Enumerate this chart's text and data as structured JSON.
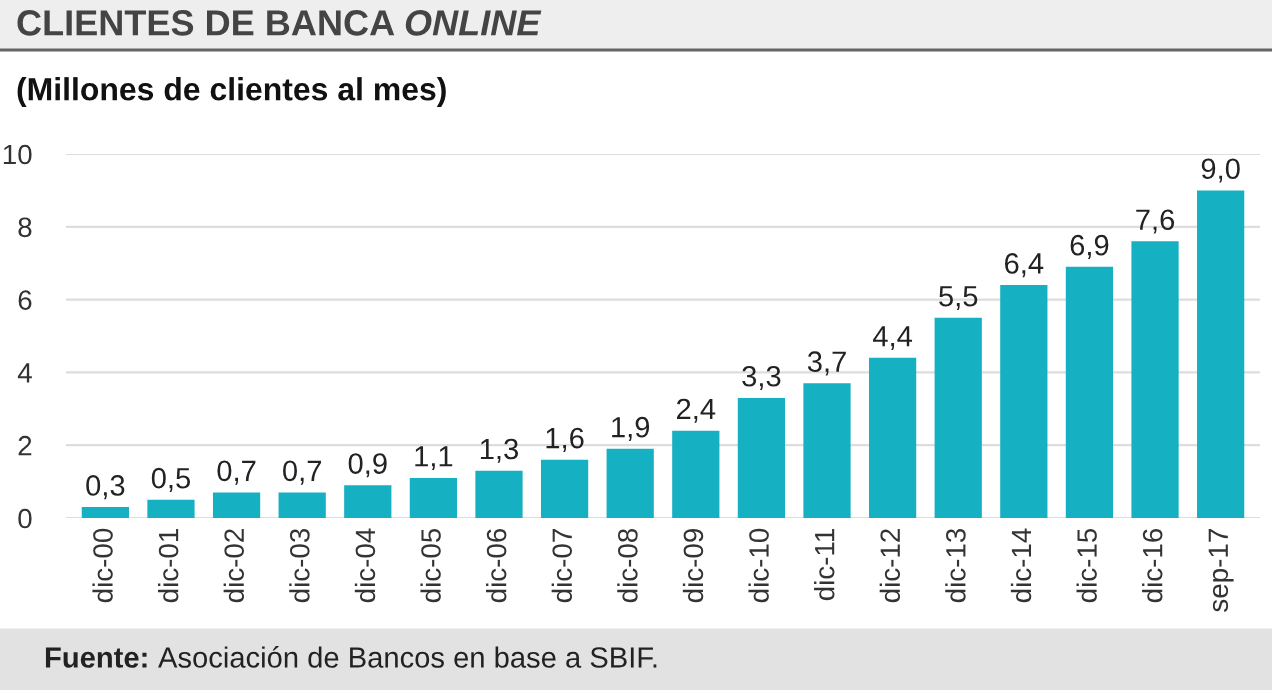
{
  "chart_data": {
    "type": "bar",
    "title": "CLIENTES DE BANCA ONLINE",
    "subtitle": "(Millones de clientes al mes)",
    "categories": [
      "dic-00",
      "dic-01",
      "dic-02",
      "dic-03",
      "dic-04",
      "dic-05",
      "dic-06",
      "dic-07",
      "dic-08",
      "dic-09",
      "dic-10",
      "dic-11",
      "dic-12",
      "dic-13",
      "dic-14",
      "dic-15",
      "dic-16",
      "sep-17"
    ],
    "values": [
      0.3,
      0.5,
      0.7,
      0.7,
      0.9,
      1.1,
      1.3,
      1.6,
      1.9,
      2.4,
      3.3,
      3.7,
      4.4,
      5.5,
      6.4,
      6.9,
      7.6,
      9.0
    ],
    "value_labels": [
      "0,3",
      "0,5",
      "0,7",
      "0,7",
      "0,9",
      "1,1",
      "1,3",
      "1,6",
      "1,9",
      "2,4",
      "3,3",
      "3,7",
      "4,4",
      "5,5",
      "6,4",
      "6,9",
      "7,6",
      "9,0"
    ],
    "color": "#16b0c3",
    "ylim": [
      0,
      10
    ],
    "yticks": [
      0,
      2,
      4,
      6,
      8,
      10
    ],
    "grid": "y",
    "annotations": [
      "Fuente: Asociación de Bancos en base a SBIF."
    ]
  }
}
